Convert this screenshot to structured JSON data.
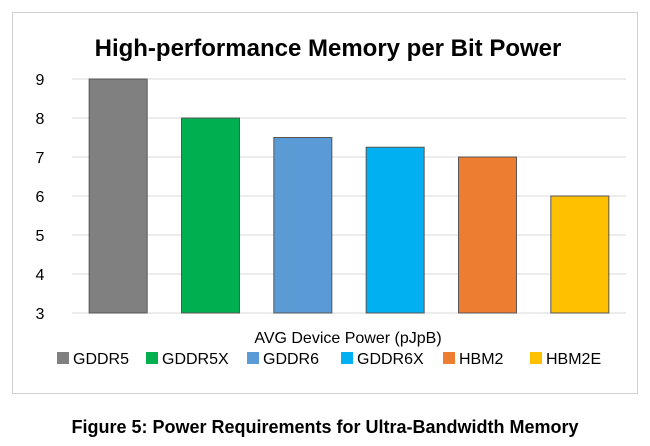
{
  "chart_data": {
    "type": "bar",
    "title": "High-performance Memory per Bit Power",
    "xlabel": "AVG Device Power (pJpB)",
    "ylabel": "",
    "categories": [
      "GDDR5",
      "GDDR5X",
      "GDDR6",
      "GDDR6X",
      "HBM2",
      "HBM2E"
    ],
    "values": [
      9,
      8,
      7.5,
      7.25,
      7,
      6
    ],
    "colors": [
      "#808080",
      "#00b050",
      "#5b9bd5",
      "#00b0f0",
      "#ed7d31",
      "#ffc000"
    ],
    "ylim": [
      3,
      9
    ],
    "yticks": [
      "3",
      "4",
      "5",
      "6",
      "7",
      "8",
      "9"
    ],
    "grid": true,
    "legend_position": "bottom"
  },
  "caption": "Figure 5: Power Requirements for Ultra-Bandwidth Memory"
}
